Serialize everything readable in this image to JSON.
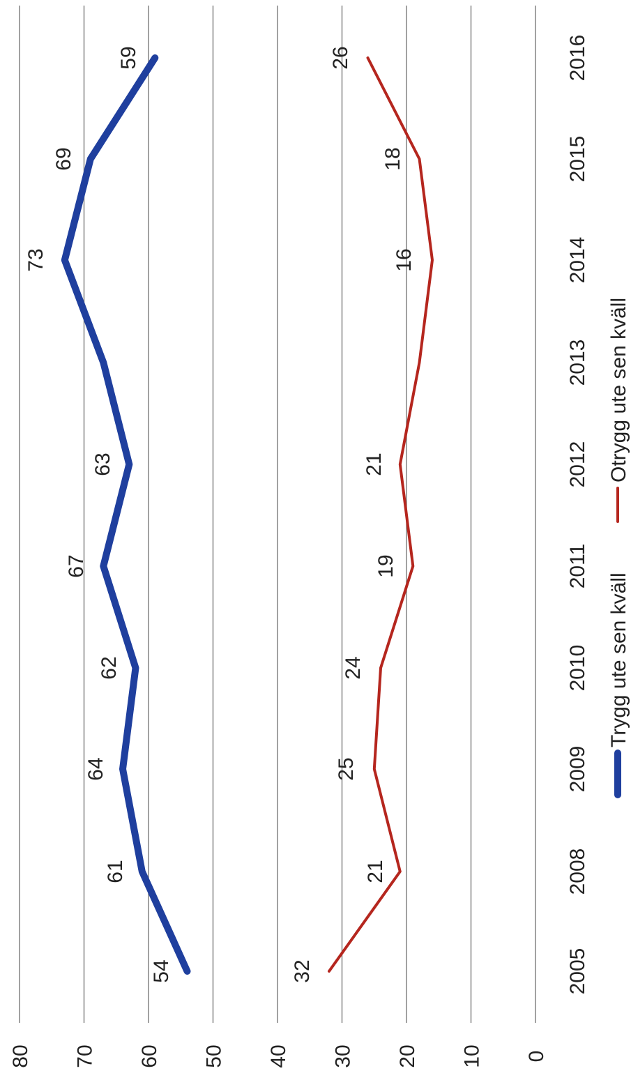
{
  "chart_data": {
    "type": "line",
    "orientation": "rotated-90-ccw",
    "categories": [
      "2005",
      "2008",
      "2009",
      "2010",
      "2011",
      "2012",
      "2013",
      "2014",
      "2015",
      "2016"
    ],
    "series": [
      {
        "name": "Trygg ute sen kväll",
        "color": "#1f3f9e",
        "values": [
          54,
          61,
          64,
          62,
          67,
          63,
          67,
          73,
          69,
          59
        ],
        "labels": [
          "54",
          "61",
          "64",
          "62",
          "67",
          "63",
          "",
          "73",
          "69",
          "59"
        ]
      },
      {
        "name": "Otrygg ute sen kväll",
        "color": "#b5261e",
        "values": [
          32,
          21,
          25,
          24,
          19,
          21,
          18,
          16,
          18,
          26
        ],
        "labels": [
          "32",
          "21",
          "25",
          "24",
          "19",
          "21",
          "",
          "16",
          "18",
          "26"
        ]
      }
    ],
    "ylim": [
      0,
      80
    ],
    "yticks": [
      "0",
      "10",
      "20",
      "30",
      "40",
      "50",
      "60",
      "70",
      "80"
    ],
    "grid": true,
    "legend_position": "bottom"
  }
}
